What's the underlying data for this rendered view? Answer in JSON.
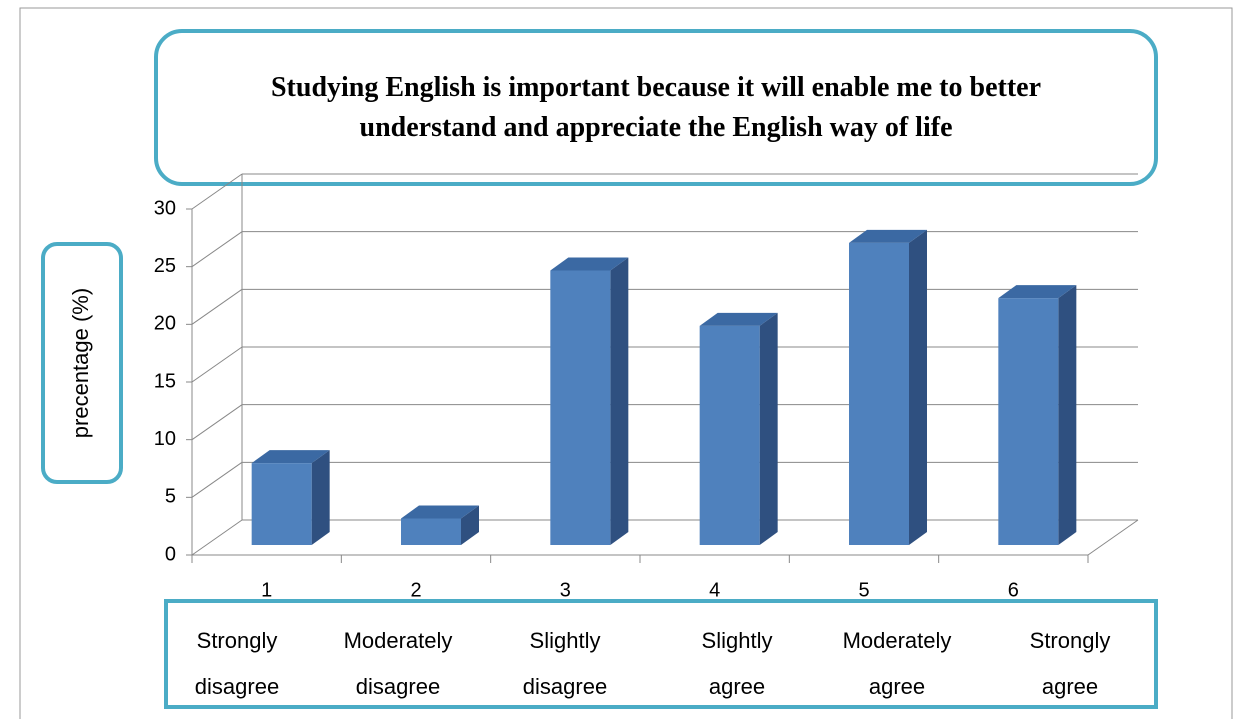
{
  "chart_data": {
    "type": "bar3d",
    "title": "Studying English is important because it will enable me to better understand and appreciate the English way of life",
    "y_label": "precentage (%)",
    "categories": [
      "1",
      "2",
      "3",
      "4",
      "5",
      "6"
    ],
    "scale_labels": [
      "Strongly disagree",
      "Moderately disagree",
      "Slightly disagree",
      "Slightly agree",
      "Moderately agree",
      "Strongly agree"
    ],
    "values": [
      7.1,
      2.3,
      23.8,
      19,
      26.2,
      21.4
    ],
    "color": "#4f81bd",
    "ylim": [
      0,
      30
    ],
    "yticks": [
      0,
      5,
      10,
      15,
      20,
      25,
      30
    ],
    "grid": true
  }
}
